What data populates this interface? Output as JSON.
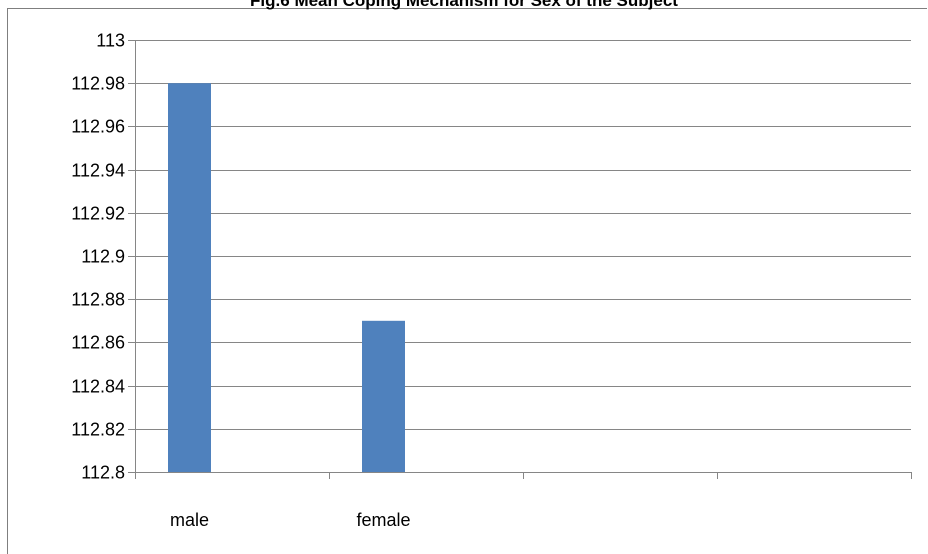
{
  "chart_data": {
    "type": "bar",
    "title": "Fig.6 Mean Coping Mechanism for Sex of the Subject",
    "xlabel": "",
    "ylabel": "",
    "categories": [
      "male",
      "female",
      "",
      ""
    ],
    "series": [
      {
        "values": [
          112.98,
          112.87,
          null,
          null
        ]
      }
    ],
    "ylim": [
      112.8,
      113
    ],
    "yticks": [
      "112.8",
      "112.82",
      "112.84",
      "112.86",
      "112.88",
      "112.9",
      "112.92",
      "112.94",
      "112.96",
      "112.98",
      "113"
    ],
    "grid": true,
    "legend": "none",
    "bar_color": "#4f81bd",
    "gridline_color": "#868686"
  }
}
